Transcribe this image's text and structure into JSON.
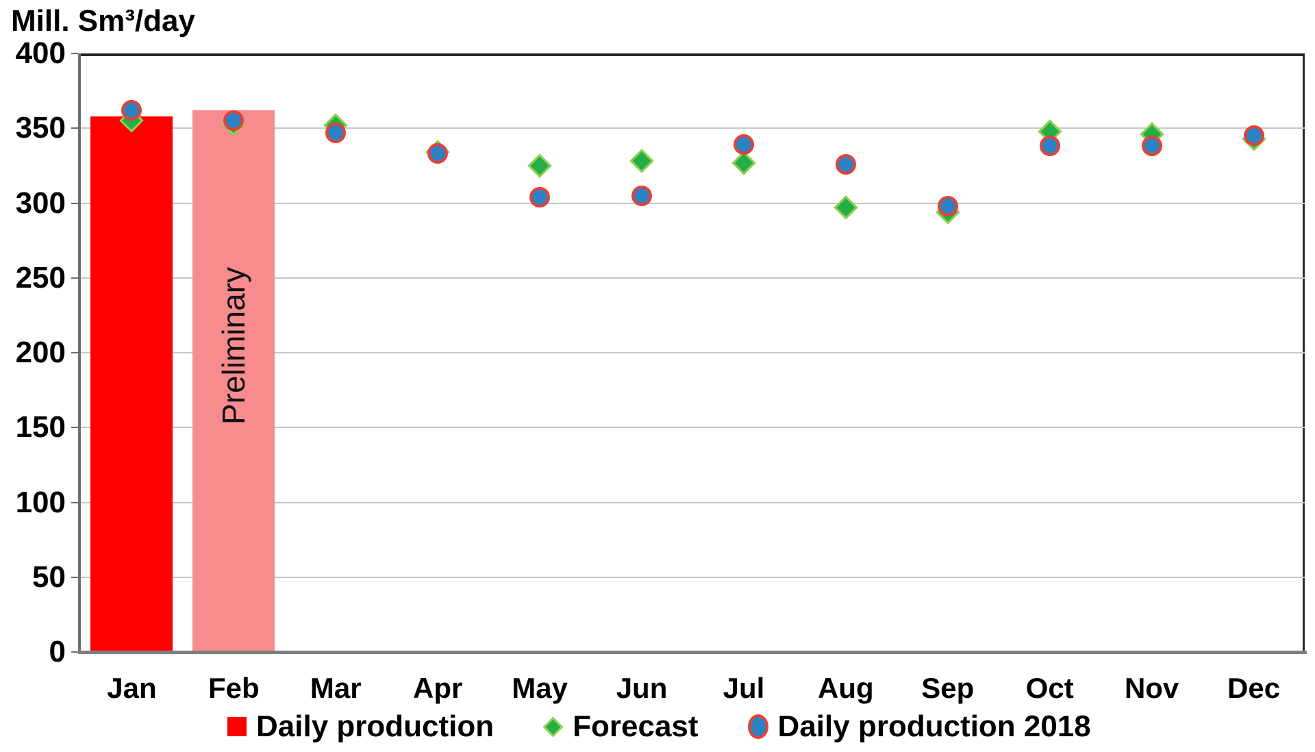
{
  "chart_data": {
    "type": "combo",
    "title": "Mill. Sm³/day",
    "categories": [
      "Jan",
      "Feb",
      "Mar",
      "Apr",
      "May",
      "Jun",
      "Jul",
      "Aug",
      "Sep",
      "Oct",
      "Nov",
      "Dec"
    ],
    "ylim": [
      0,
      400
    ],
    "ytick_step": 50,
    "grid": "horizontal",
    "legend_position": "bottom",
    "series": [
      {
        "name": "Daily production",
        "type": "bar",
        "values": [
          358,
          362,
          null,
          null,
          null,
          null,
          null,
          null,
          null,
          null,
          null,
          null
        ],
        "bar_colors": [
          "#FF0000",
          "#F78B8D"
        ]
      },
      {
        "name": "Forecast",
        "type": "scatter",
        "marker": "diamond",
        "fill_color": "#24AE45",
        "border_color": "#90D04F",
        "values": [
          355,
          353,
          352,
          334,
          325,
          328,
          327,
          297,
          294,
          348,
          346,
          343
        ]
      },
      {
        "name": "Daily production 2018",
        "type": "scatter",
        "marker": "circle",
        "fill_color": "#2D82C3",
        "border_color": "#E64137",
        "values": [
          362,
          355,
          347,
          333,
          304,
          305,
          339,
          326,
          298,
          338,
          338,
          345
        ]
      }
    ],
    "annotation": {
      "text": "Preliminary",
      "month": "Feb",
      "rotation_deg": -90
    },
    "colors": {
      "bar_red": "#FF0000",
      "bar_preliminary_pink": "#F78B8D",
      "forecast_green": "#24AE45",
      "forecast_green_border": "#90D04F",
      "production2018_blue": "#2D82C3",
      "production2018_red_border": "#E64137",
      "gridline_gray": "#C6C6C6"
    }
  }
}
